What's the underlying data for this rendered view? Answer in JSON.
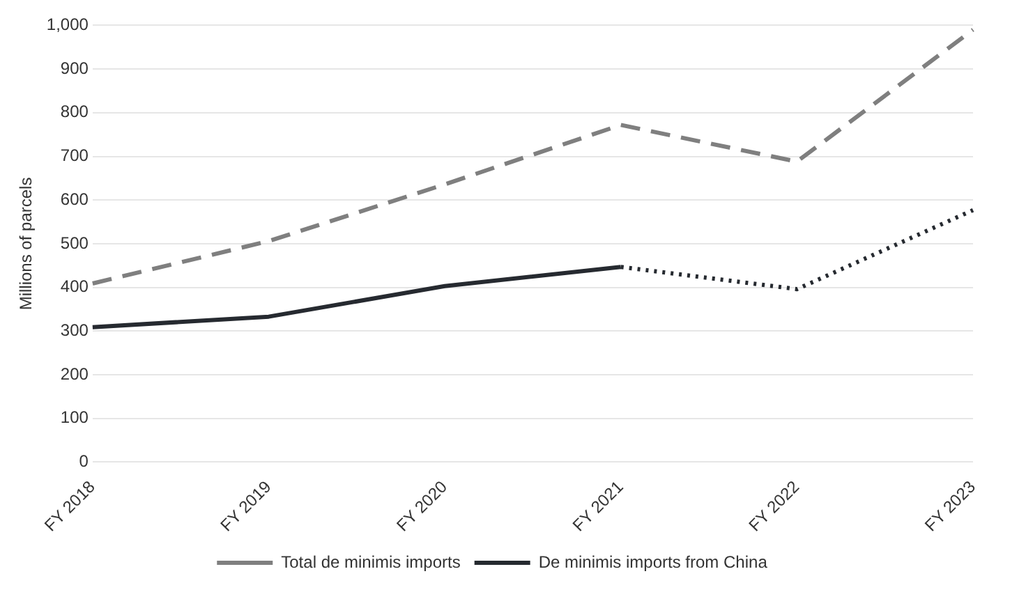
{
  "chart_data": {
    "type": "line",
    "ylabel": "Millions of parcels",
    "categories": [
      "FY 2018",
      "FY 2019",
      "FY 2020",
      "FY 2021",
      "FY 2022",
      "FY 2023"
    ],
    "series": [
      {
        "name": "Total de minimis imports",
        "color": "#7f7f7f",
        "line_style": "dashed",
        "values": [
          409,
          506,
          636,
          772,
          688,
          990
        ]
      },
      {
        "name": "De minimis imports from China",
        "color": "#262a30",
        "line_style": "solid",
        "values": [
          309,
          333,
          403,
          447,
          null,
          null
        ]
      },
      {
        "color": "#262a30",
        "line_style": "dotted",
        "values": [
          null,
          null,
          null,
          447,
          396,
          577
        ]
      }
    ],
    "ylim": [
      0,
      1000
    ],
    "yticks": [
      0,
      100,
      200,
      300,
      400,
      500,
      600,
      700,
      800,
      900,
      {
        "value": 1000,
        "label": "1,000"
      }
    ],
    "grid": "y",
    "legend": "bottom",
    "marker": "none"
  }
}
